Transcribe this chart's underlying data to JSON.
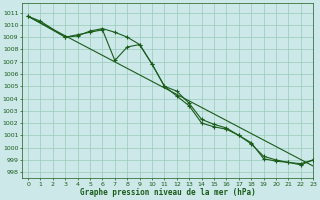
{
  "title": "Graphe pression niveau de la mer (hPa)",
  "bg_color": "#cce8e8",
  "grid_color": "#99ccbb",
  "line_color": "#1a5c1a",
  "marker_color": "#1a5c1a",
  "xlim": [
    -0.5,
    23
  ],
  "ylim": [
    997.5,
    1011.8
  ],
  "yticks": [
    998,
    999,
    1000,
    1001,
    1002,
    1003,
    1004,
    1005,
    1006,
    1007,
    1008,
    1009,
    1010,
    1011
  ],
  "xticks": [
    0,
    1,
    2,
    3,
    4,
    5,
    6,
    7,
    8,
    9,
    10,
    11,
    12,
    13,
    14,
    15,
    16,
    17,
    18,
    19,
    20,
    21,
    22,
    23
  ],
  "series1_x": [
    0,
    1,
    3,
    4,
    5,
    6,
    7,
    8,
    9,
    10,
    11,
    12,
    13,
    14,
    15,
    16,
    17,
    18,
    19,
    20,
    21,
    22,
    23
  ],
  "series1_y": [
    1010.7,
    1010.3,
    1009.0,
    1009.1,
    1009.5,
    1009.7,
    1009.4,
    1009.0,
    1008.4,
    1006.8,
    1005.0,
    1004.2,
    1003.4,
    1002.0,
    1001.7,
    1001.5,
    1001.0,
    1000.4,
    999.1,
    998.9,
    998.8,
    998.7,
    999.0
  ],
  "series2_x": [
    0,
    3,
    4,
    5,
    6,
    7,
    8,
    9,
    10,
    11,
    12,
    13,
    14,
    15,
    16,
    17,
    18,
    19,
    20,
    21,
    22,
    23
  ],
  "series2_y": [
    1010.7,
    1009.0,
    1009.2,
    1009.4,
    1009.6,
    1007.1,
    1008.2,
    1008.4,
    1006.8,
    1005.0,
    1004.6,
    1003.6,
    1002.3,
    1001.9,
    1001.6,
    1001.0,
    1000.3,
    999.3,
    999.0,
    998.8,
    998.6,
    999.0
  ],
  "series3_x": [
    0,
    23
  ],
  "series3_y": [
    1010.7,
    998.5
  ]
}
